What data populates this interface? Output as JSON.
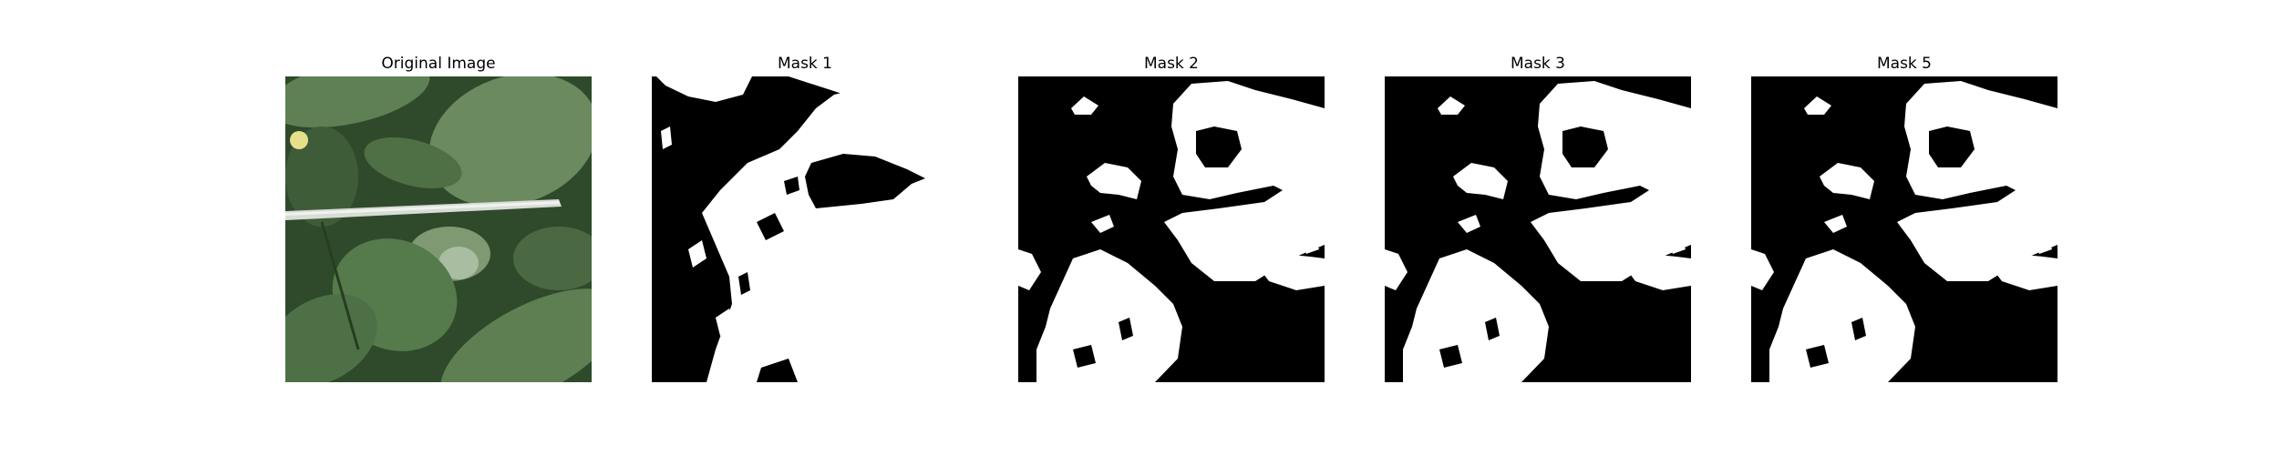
{
  "panels": [
    {
      "title": "Original Image",
      "kind": "photo"
    },
    {
      "title": "Mask 1",
      "kind": "mask"
    },
    {
      "title": "Mask 2",
      "kind": "mask"
    },
    {
      "title": "Mask 3",
      "kind": "mask"
    },
    {
      "title": "Mask 5",
      "kind": "mask"
    }
  ],
  "colors": {
    "background": "#ffffff",
    "mask_foreground": "#ffffff",
    "mask_background": "#000000",
    "leaf_dark": "#2f4a2b",
    "leaf_mid": "#4f6f45",
    "leaf_light": "#7f9a72",
    "stake": "#d8dcd6"
  }
}
